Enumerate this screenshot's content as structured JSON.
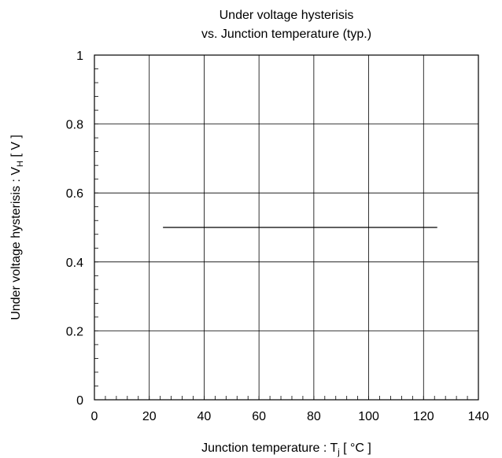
{
  "chart_data": {
    "type": "line",
    "title": "Under voltage hysterisis",
    "subtitle": "vs. Junction temperature (typ.)",
    "xlabel": {
      "main": "Junction temperature : T",
      "sub": "j",
      "suffix": " [ °C ]"
    },
    "ylabel": {
      "main": "Under voltage hysterisis : V",
      "sub": "H",
      "suffix": " [ V ]"
    },
    "xlim": [
      0,
      140
    ],
    "ylim": [
      0,
      1
    ],
    "xticks": [
      0,
      20,
      40,
      60,
      80,
      100,
      120,
      140
    ],
    "yticks": [
      0,
      0.2,
      0.4,
      0.6,
      0.8,
      1
    ],
    "xtick_labels": [
      "0",
      "20",
      "40",
      "60",
      "80",
      "100",
      "120",
      "140"
    ],
    "ytick_labels": [
      "0",
      "0.2",
      "0.4",
      "0.6",
      "0.8",
      "1"
    ],
    "x_minor_step": 4,
    "y_minor_step": 0.04,
    "grid": true,
    "series": [
      {
        "x": [
          25,
          125
        ],
        "y": [
          0.5,
          0.5
        ],
        "color": "#000000"
      }
    ]
  }
}
